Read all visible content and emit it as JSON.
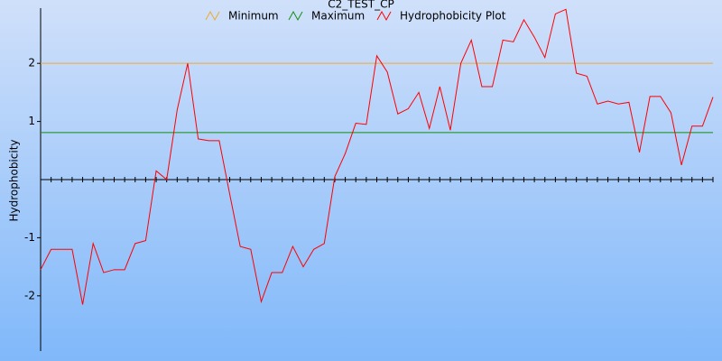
{
  "chart_data": {
    "type": "line",
    "title": "C2_TEST_CP",
    "y_label": "Hydrophobicity",
    "categories": [
      null,
      null,
      null,
      null,
      null,
      null,
      null,
      null,
      null,
      null,
      null,
      null,
      null,
      null,
      null,
      null,
      null,
      null,
      null,
      null,
      null,
      null,
      null,
      null,
      null,
      null,
      null,
      null,
      null,
      null,
      null,
      null,
      null,
      null,
      null,
      null,
      null,
      null,
      null,
      null,
      null,
      null,
      null,
      null,
      null,
      null,
      null,
      null,
      null,
      null,
      null,
      null,
      null,
      null,
      null,
      null,
      null,
      null,
      null,
      null,
      null,
      null,
      null,
      null,
      null
    ],
    "series": [
      {
        "name": "Minimum",
        "color": "#f0a830",
        "values": [
          2,
          2,
          2,
          2,
          2,
          2,
          2,
          2,
          2,
          2,
          2,
          2,
          2,
          2,
          2,
          2,
          2,
          2,
          2,
          2,
          2,
          2,
          2,
          2,
          2,
          2,
          2,
          2,
          2,
          2,
          2,
          2,
          2,
          2,
          2,
          2,
          2,
          2,
          2,
          2,
          2,
          2,
          2,
          2,
          2,
          2,
          2,
          2,
          2,
          2,
          2,
          2,
          2,
          2,
          2,
          2,
          2,
          2,
          2,
          2,
          2,
          2,
          2,
          2,
          2
        ]
      },
      {
        "name": "Maximum",
        "color": "#109010",
        "values": [
          0.81,
          0.81,
          0.81,
          0.81,
          0.81,
          0.81,
          0.81,
          0.81,
          0.81,
          0.81,
          0.81,
          0.81,
          0.81,
          0.81,
          0.81,
          0.81,
          0.81,
          0.81,
          0.81,
          0.81,
          0.81,
          0.81,
          0.81,
          0.81,
          0.81,
          0.81,
          0.81,
          0.81,
          0.81,
          0.81,
          0.81,
          0.81,
          0.81,
          0.81,
          0.81,
          0.81,
          0.81,
          0.81,
          0.81,
          0.81,
          0.81,
          0.81,
          0.81,
          0.81,
          0.81,
          0.81,
          0.81,
          0.81,
          0.81,
          0.81,
          0.81,
          0.81,
          0.81,
          0.81,
          0.81,
          0.81,
          0.81,
          0.81,
          0.81,
          0.81,
          0.81,
          0.81,
          0.81,
          0.81,
          0.81
        ]
      },
      {
        "name": "Hydrophobicity Plot",
        "color": "#ff0000",
        "values": [
          -1.55,
          -1.2,
          -1.2,
          -1.2,
          -2.15,
          -1.1,
          -1.6,
          -1.55,
          -1.55,
          -1.1,
          -1.05,
          0.15,
          0.0,
          1.2,
          2.0,
          0.7,
          0.67,
          0.67,
          -0.25,
          -1.15,
          -1.2,
          -2.1,
          -1.6,
          -1.6,
          -1.15,
          -1.5,
          -1.2,
          -1.1,
          0.05,
          0.45,
          0.97,
          0.95,
          2.13,
          1.85,
          1.13,
          1.22,
          1.5,
          0.88,
          1.6,
          0.85,
          2.0,
          2.4,
          1.6,
          1.6,
          2.4,
          2.37,
          2.75,
          2.45,
          2.1,
          2.85,
          2.93,
          1.83,
          1.78,
          1.3,
          1.35,
          1.3,
          1.33,
          0.47,
          1.43,
          1.43,
          1.15,
          0.25,
          0.92,
          0.92,
          1.42
        ]
      }
    ],
    "ylim": [
      -2.95,
      2.95
    ],
    "yticks": [
      -2,
      -1,
      1,
      2
    ]
  }
}
